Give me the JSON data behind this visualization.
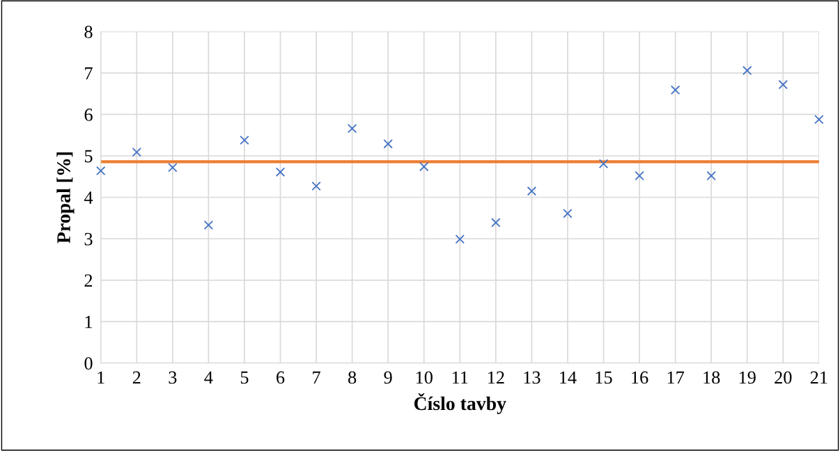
{
  "chart_data": {
    "type": "scatter",
    "xlabel": "Číslo tavby",
    "ylabel": "Propal [%]",
    "x": [
      1,
      2,
      3,
      4,
      5,
      6,
      7,
      8,
      9,
      10,
      11,
      12,
      13,
      14,
      15,
      16,
      17,
      18,
      19,
      20,
      21
    ],
    "series": [
      {
        "color": "#4472c4",
        "values": [
          4.64,
          5.09,
          4.72,
          3.33,
          5.38,
          4.61,
          4.27,
          5.66,
          5.29,
          4.74,
          2.99,
          3.39,
          4.15,
          3.61,
          4.81,
          4.52,
          6.59,
          4.52,
          7.06,
          6.72,
          5.88
        ]
      }
    ],
    "ref_lines": [
      {
        "axis": "y",
        "value": 4.86,
        "color": "#ed7d31",
        "line_style": "solid"
      }
    ],
    "xlim": [
      1,
      21
    ],
    "xticks": [
      1,
      2,
      3,
      4,
      5,
      6,
      7,
      8,
      9,
      10,
      11,
      12,
      13,
      14,
      15,
      16,
      17,
      18,
      19,
      20,
      21
    ],
    "ylim": [
      0,
      8
    ],
    "yticks": [
      0,
      1,
      2,
      3,
      4,
      5,
      6,
      7,
      8
    ],
    "grid": true,
    "marker": "cross",
    "legend": false
  }
}
